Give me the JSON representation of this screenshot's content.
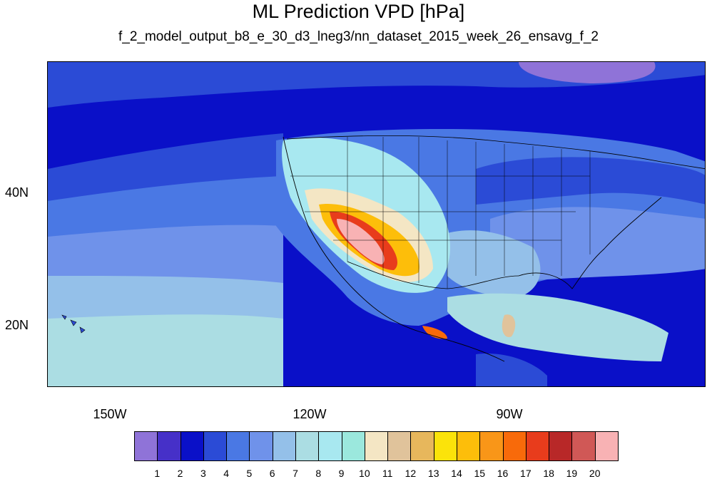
{
  "title": "ML Prediction VPD [hPa]",
  "subtitle": "f_2_model_output_b8_e_30_d3_lneg3/nn_dataset_2015_week_26_ensavg_f_2",
  "lat_labels": [
    "40N",
    "20N"
  ],
  "lon_labels": [
    "150W",
    "120W",
    "90W"
  ],
  "colorbar": {
    "colors": [
      "#8f73d8",
      "#4630c8",
      "#0a10c8",
      "#2b4bd6",
      "#4a78e4",
      "#6f92ea",
      "#94c0e9",
      "#abdde3",
      "#a8e8f0",
      "#9be8dd",
      "#f4e6c4",
      "#e0c39b",
      "#e7b75c",
      "#fbe30a",
      "#fdbe0a",
      "#f99618",
      "#f86a0a",
      "#e83c1c",
      "#b82828",
      "#d05856",
      "#f8b2b4"
    ],
    "labels": [
      "1",
      "2",
      "3",
      "4",
      "5",
      "6",
      "7",
      "8",
      "9",
      "10",
      "11",
      "12",
      "13",
      "14",
      "15",
      "16",
      "17",
      "18",
      "19",
      "20"
    ]
  }
}
